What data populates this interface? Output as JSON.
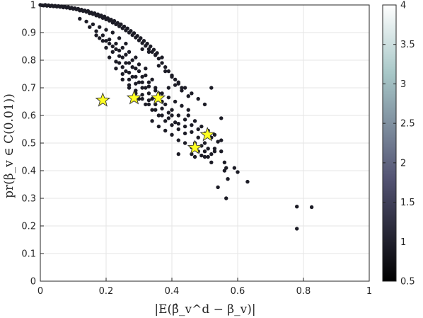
{
  "chart_data": {
    "type": "scatter",
    "title": "",
    "xlabel": "|E(β̂_v^d − β_v)|",
    "ylabel": "pr(β_v ∈ C(0.01))",
    "xlim": [
      0,
      1
    ],
    "ylim": [
      0,
      1
    ],
    "xticks": [
      "0",
      "0.2",
      "0.4",
      "0.6",
      "0.8",
      "1"
    ],
    "yticks": [
      "0",
      "0.1",
      "0.2",
      "0.3",
      "0.4",
      "0.5",
      "0.6",
      "0.7",
      "0.8",
      "0.9",
      "1"
    ],
    "grid": true,
    "colorbar": {
      "range": [
        0.5,
        4
      ],
      "ticks": [
        "0.5",
        "1",
        "1.5",
        "2",
        "2.5",
        "3",
        "3.5",
        "4"
      ],
      "colormap": "bone"
    },
    "point_color": "#1c1c26",
    "star_color": "#ffff22",
    "series": [
      {
        "marker": "dot",
        "points": [
          [
            0.0,
            1.0
          ],
          [
            0.005,
            0.999
          ],
          [
            0.01,
            0.998
          ],
          [
            0.015,
            1.0
          ],
          [
            0.02,
            0.997
          ],
          [
            0.025,
            0.999
          ],
          [
            0.03,
            0.996
          ],
          [
            0.035,
            0.998
          ],
          [
            0.04,
            0.995
          ],
          [
            0.045,
            0.997
          ],
          [
            0.05,
            0.994
          ],
          [
            0.055,
            0.996
          ],
          [
            0.06,
            0.993
          ],
          [
            0.065,
            0.995
          ],
          [
            0.07,
            0.991
          ],
          [
            0.075,
            0.994
          ],
          [
            0.08,
            0.99
          ],
          [
            0.085,
            0.992
          ],
          [
            0.09,
            0.988
          ],
          [
            0.095,
            0.99
          ],
          [
            0.1,
            0.986
          ],
          [
            0.105,
            0.988
          ],
          [
            0.11,
            0.984
          ],
          [
            0.115,
            0.986
          ],
          [
            0.12,
            0.98
          ],
          [
            0.125,
            0.983
          ],
          [
            0.13,
            0.978
          ],
          [
            0.135,
            0.98
          ],
          [
            0.14,
            0.975
          ],
          [
            0.145,
            0.978
          ],
          [
            0.15,
            0.97
          ],
          [
            0.155,
            0.973
          ],
          [
            0.16,
            0.967
          ],
          [
            0.165,
            0.97
          ],
          [
            0.17,
            0.962
          ],
          [
            0.175,
            0.966
          ],
          [
            0.18,
            0.958
          ],
          [
            0.185,
            0.962
          ],
          [
            0.19,
            0.953
          ],
          [
            0.195,
            0.958
          ],
          [
            0.2,
            0.948
          ],
          [
            0.205,
            0.952
          ],
          [
            0.21,
            0.943
          ],
          [
            0.215,
            0.947
          ],
          [
            0.22,
            0.936
          ],
          [
            0.225,
            0.942
          ],
          [
            0.23,
            0.93
          ],
          [
            0.235,
            0.935
          ],
          [
            0.24,
            0.923
          ],
          [
            0.245,
            0.93
          ],
          [
            0.25,
            0.916
          ],
          [
            0.255,
            0.922
          ],
          [
            0.26,
            0.908
          ],
          [
            0.265,
            0.915
          ],
          [
            0.27,
            0.9
          ],
          [
            0.275,
            0.906
          ],
          [
            0.28,
            0.891
          ],
          [
            0.285,
            0.898
          ],
          [
            0.29,
            0.882
          ],
          [
            0.295,
            0.888
          ],
          [
            0.3,
            0.872
          ],
          [
            0.305,
            0.88
          ],
          [
            0.31,
            0.862
          ],
          [
            0.315,
            0.87
          ],
          [
            0.32,
            0.852
          ],
          [
            0.325,
            0.86
          ],
          [
            0.33,
            0.84
          ],
          [
            0.335,
            0.85
          ],
          [
            0.34,
            0.83
          ],
          [
            0.345,
            0.838
          ],
          [
            0.35,
            0.818
          ],
          [
            0.355,
            0.826
          ],
          [
            0.36,
            0.806
          ],
          [
            0.37,
            0.79
          ],
          [
            0.38,
            0.775
          ],
          [
            0.39,
            0.76
          ],
          [
            0.4,
            0.745
          ],
          [
            0.41,
            0.73
          ],
          [
            0.42,
            0.715
          ],
          [
            0.43,
            0.7
          ],
          [
            0.12,
            0.95
          ],
          [
            0.14,
            0.94
          ],
          [
            0.16,
            0.93
          ],
          [
            0.18,
            0.92
          ],
          [
            0.2,
            0.91
          ],
          [
            0.22,
            0.9
          ],
          [
            0.24,
            0.88
          ],
          [
            0.26,
            0.86
          ],
          [
            0.15,
            0.92
          ],
          [
            0.17,
            0.905
          ],
          [
            0.19,
            0.89
          ],
          [
            0.21,
            0.875
          ],
          [
            0.23,
            0.86
          ],
          [
            0.25,
            0.845
          ],
          [
            0.27,
            0.83
          ],
          [
            0.29,
            0.81
          ],
          [
            0.18,
            0.88
          ],
          [
            0.2,
            0.87
          ],
          [
            0.22,
            0.85
          ],
          [
            0.24,
            0.835
          ],
          [
            0.26,
            0.82
          ],
          [
            0.28,
            0.8
          ],
          [
            0.3,
            0.785
          ],
          [
            0.32,
            0.77
          ],
          [
            0.2,
            0.845
          ],
          [
            0.22,
            0.83
          ],
          [
            0.24,
            0.815
          ],
          [
            0.26,
            0.79
          ],
          [
            0.28,
            0.775
          ],
          [
            0.3,
            0.76
          ],
          [
            0.32,
            0.745
          ],
          [
            0.34,
            0.73
          ],
          [
            0.21,
            0.81
          ],
          [
            0.23,
            0.795
          ],
          [
            0.25,
            0.775
          ],
          [
            0.27,
            0.755
          ],
          [
            0.29,
            0.74
          ],
          [
            0.31,
            0.72
          ],
          [
            0.33,
            0.705
          ],
          [
            0.35,
            0.69
          ],
          [
            0.23,
            0.77
          ],
          [
            0.25,
            0.75
          ],
          [
            0.27,
            0.73
          ],
          [
            0.29,
            0.715
          ],
          [
            0.31,
            0.7
          ],
          [
            0.33,
            0.68
          ],
          [
            0.35,
            0.665
          ],
          [
            0.37,
            0.65
          ],
          [
            0.25,
            0.73
          ],
          [
            0.27,
            0.71
          ],
          [
            0.29,
            0.69
          ],
          [
            0.31,
            0.675
          ],
          [
            0.33,
            0.655
          ],
          [
            0.35,
            0.64
          ],
          [
            0.37,
            0.625
          ],
          [
            0.39,
            0.61
          ],
          [
            0.27,
            0.7
          ],
          [
            0.29,
            0.68
          ],
          [
            0.31,
            0.66
          ],
          [
            0.33,
            0.64
          ],
          [
            0.35,
            0.62
          ],
          [
            0.37,
            0.6
          ],
          [
            0.39,
            0.59
          ],
          [
            0.41,
            0.575
          ],
          [
            0.3,
            0.66
          ],
          [
            0.32,
            0.64
          ],
          [
            0.34,
            0.62
          ],
          [
            0.36,
            0.6
          ],
          [
            0.38,
            0.58
          ],
          [
            0.4,
            0.565
          ],
          [
            0.42,
            0.55
          ],
          [
            0.44,
            0.535
          ],
          [
            0.31,
            0.74
          ],
          [
            0.33,
            0.72
          ],
          [
            0.35,
            0.7
          ],
          [
            0.37,
            0.68
          ],
          [
            0.39,
            0.665
          ],
          [
            0.41,
            0.65
          ],
          [
            0.43,
            0.635
          ],
          [
            0.45,
            0.62
          ],
          [
            0.36,
            0.78
          ],
          [
            0.38,
            0.76
          ],
          [
            0.4,
            0.74
          ],
          [
            0.42,
            0.72
          ],
          [
            0.44,
            0.7
          ],
          [
            0.46,
            0.68
          ],
          [
            0.48,
            0.66
          ],
          [
            0.5,
            0.64
          ],
          [
            0.34,
            0.58
          ],
          [
            0.36,
            0.56
          ],
          [
            0.38,
            0.545
          ],
          [
            0.4,
            0.53
          ],
          [
            0.42,
            0.51
          ],
          [
            0.44,
            0.5
          ],
          [
            0.46,
            0.485
          ],
          [
            0.48,
            0.47
          ],
          [
            0.4,
            0.62
          ],
          [
            0.42,
            0.6
          ],
          [
            0.44,
            0.585
          ],
          [
            0.46,
            0.565
          ],
          [
            0.48,
            0.55
          ],
          [
            0.5,
            0.535
          ],
          [
            0.52,
            0.52
          ],
          [
            0.54,
            0.505
          ],
          [
            0.45,
            0.6
          ],
          [
            0.47,
            0.58
          ],
          [
            0.49,
            0.56
          ],
          [
            0.51,
            0.545
          ],
          [
            0.53,
            0.53
          ],
          [
            0.55,
            0.51
          ],
          [
            0.5,
            0.47
          ],
          [
            0.52,
            0.46
          ],
          [
            0.46,
            0.54
          ],
          [
            0.48,
            0.52
          ],
          [
            0.5,
            0.5
          ],
          [
            0.44,
            0.56
          ],
          [
            0.42,
            0.57
          ],
          [
            0.47,
            0.5
          ],
          [
            0.49,
            0.49
          ],
          [
            0.51,
            0.48
          ],
          [
            0.33,
            0.83
          ],
          [
            0.35,
            0.82
          ],
          [
            0.37,
            0.81
          ],
          [
            0.31,
            0.84
          ],
          [
            0.41,
            0.71
          ],
          [
            0.43,
            0.69
          ],
          [
            0.45,
            0.67
          ],
          [
            0.39,
            0.7
          ],
          [
            0.38,
            0.64
          ],
          [
            0.4,
            0.6
          ],
          [
            0.36,
            0.68
          ],
          [
            0.34,
            0.66
          ],
          [
            0.32,
            0.7
          ],
          [
            0.28,
            0.74
          ],
          [
            0.26,
            0.76
          ],
          [
            0.24,
            0.79
          ],
          [
            0.21,
            0.86
          ],
          [
            0.19,
            0.87
          ],
          [
            0.17,
            0.89
          ],
          [
            0.23,
            0.84
          ],
          [
            0.25,
            0.81
          ],
          [
            0.27,
            0.79
          ],
          [
            0.29,
            0.77
          ],
          [
            0.3,
            0.72
          ],
          [
            0.52,
            0.7
          ],
          [
            0.55,
            0.59
          ],
          [
            0.53,
            0.48
          ],
          [
            0.55,
            0.47
          ],
          [
            0.52,
            0.43
          ],
          [
            0.42,
            0.46
          ],
          [
            0.47,
            0.45
          ],
          [
            0.5,
            0.45
          ],
          [
            0.56,
            0.43
          ],
          [
            0.565,
            0.41
          ],
          [
            0.56,
            0.4
          ],
          [
            0.59,
            0.41
          ],
          [
            0.6,
            0.395
          ],
          [
            0.57,
            0.37
          ],
          [
            0.63,
            0.36
          ],
          [
            0.54,
            0.34
          ],
          [
            0.565,
            0.3
          ],
          [
            0.78,
            0.27
          ],
          [
            0.825,
            0.268
          ],
          [
            0.78,
            0.19
          ],
          [
            0.51,
            0.45
          ],
          [
            0.49,
            0.455
          ],
          [
            0.46,
            0.46
          ],
          [
            0.53,
            0.47
          ]
        ]
      },
      {
        "marker": "star",
        "points": [
          [
            0.19,
            0.655
          ],
          [
            0.285,
            0.663
          ],
          [
            0.358,
            0.663
          ],
          [
            0.47,
            0.483
          ],
          [
            0.508,
            0.53
          ]
        ]
      }
    ]
  }
}
